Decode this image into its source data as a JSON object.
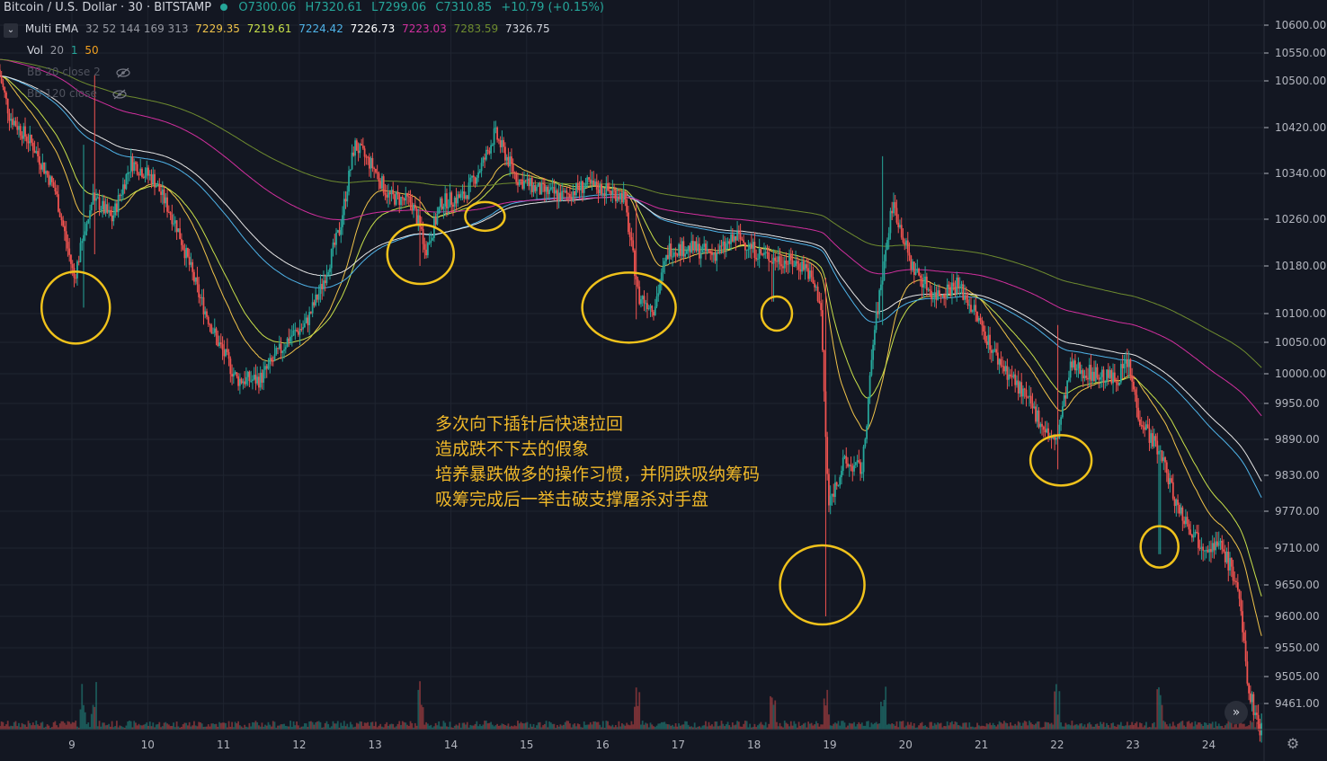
{
  "header": {
    "symbol": "Bitcoin / U.S. Dollar · 30 · BITSTAMP",
    "open": "O7300.06",
    "high": "H7320.61",
    "low": "L7299.06",
    "close": "C7310.85",
    "change": "+10.79 (+0.15%)"
  },
  "indicators": {
    "ema": {
      "name": "Multi EMA",
      "params": "32 52 144 169 313",
      "values": [
        "7229.35",
        "7219.61",
        "7224.42",
        "7226.73",
        "7223.03",
        "7283.59",
        "7326.75"
      ],
      "colors": [
        "#f0c34a",
        "#c8e04a",
        "#4fb3e8",
        "#ffffff",
        "#d12f9e",
        "#6e8b2f",
        "#d1d4dc"
      ]
    },
    "vol": {
      "name": "Vol",
      "p1": "20",
      "p2": "1",
      "p3": "50"
    },
    "bb1": {
      "name": "BB 20 close 2"
    },
    "bb2": {
      "name": "BB 120 close"
    }
  },
  "annotation": {
    "lines": [
      "多次向下插针后快速拉回",
      "造成跌不下去的假象",
      "培养暴跌做多的操作习惯，并阴跌吸纳筹码",
      "吸筹完成后一举击破支撑屠杀对手盘"
    ],
    "color": "#f0b829"
  },
  "colors": {
    "background": "#131722",
    "up": "#26a69a",
    "down": "#ef5350",
    "grid": "#1f2430",
    "circle": "#f0c21b"
  },
  "icons": {
    "scroll": "double-chevron-right-icon",
    "settings": "gear-icon",
    "collapse": "chevron-down-icon",
    "hidden": "eye-off-icon"
  },
  "chart_data": {
    "type": "candlestick",
    "y_ticks": [
      10600,
      10550,
      10500,
      10420,
      10340,
      10260,
      10180,
      10100,
      10050,
      10000,
      9950,
      9890,
      9830,
      9770,
      9710,
      9650,
      9600,
      9550,
      9505,
      9461
    ],
    "y_tick_labels": [
      "10600.00",
      "10550.00",
      "10500.00",
      "10420.00",
      "10340.00",
      "10260.00",
      "10180.00",
      "10100.00",
      "10050.00",
      "10000.00",
      "9950.00",
      "9890.00",
      "9830.00",
      "9770.00",
      "9710.00",
      "9650.00",
      "9600.00",
      "9550.00",
      "9505.00",
      "9461.00"
    ],
    "x_ticks": [
      "9",
      "10",
      "11",
      "12",
      "13",
      "14",
      "15",
      "16",
      "17",
      "18",
      "19",
      "20",
      "21",
      "22",
      "23",
      "24"
    ],
    "price_path": [
      [
        8.05,
        10520
      ],
      [
        8.2,
        10440
      ],
      [
        8.5,
        10390
      ],
      [
        8.8,
        10310
      ],
      [
        9.05,
        10160
      ],
      [
        9.3,
        10300
      ],
      [
        9.55,
        10260
      ],
      [
        9.8,
        10360
      ],
      [
        10.1,
        10330
      ],
      [
        10.4,
        10250
      ],
      [
        10.7,
        10130
      ],
      [
        10.95,
        10050
      ],
      [
        11.2,
        9990
      ],
      [
        11.5,
        9990
      ],
      [
        11.9,
        10060
      ],
      [
        12.1,
        10080
      ],
      [
        12.3,
        10140
      ],
      [
        12.55,
        10240
      ],
      [
        12.75,
        10390
      ],
      [
        13.0,
        10350
      ],
      [
        13.2,
        10300
      ],
      [
        13.5,
        10290
      ],
      [
        13.7,
        10210
      ],
      [
        13.9,
        10290
      ],
      [
        14.2,
        10300
      ],
      [
        14.45,
        10360
      ],
      [
        14.6,
        10410
      ],
      [
        14.9,
        10330
      ],
      [
        15.2,
        10310
      ],
      [
        15.5,
        10300
      ],
      [
        15.8,
        10320
      ],
      [
        16.1,
        10310
      ],
      [
        16.3,
        10300
      ],
      [
        16.5,
        10130
      ],
      [
        16.7,
        10110
      ],
      [
        16.9,
        10210
      ],
      [
        17.2,
        10210
      ],
      [
        17.5,
        10200
      ],
      [
        17.8,
        10230
      ],
      [
        18.1,
        10200
      ],
      [
        18.4,
        10190
      ],
      [
        18.7,
        10180
      ],
      [
        18.9,
        10120
      ],
      [
        19.0,
        9780
      ],
      [
        19.2,
        9850
      ],
      [
        19.45,
        9840
      ],
      [
        19.6,
        10060
      ],
      [
        19.85,
        10290
      ],
      [
        20.1,
        10180
      ],
      [
        20.4,
        10130
      ],
      [
        20.7,
        10150
      ],
      [
        20.9,
        10110
      ],
      [
        21.2,
        10030
      ],
      [
        21.5,
        9980
      ],
      [
        21.8,
        9920
      ],
      [
        22.0,
        9880
      ],
      [
        22.2,
        10010
      ],
      [
        22.5,
        10000
      ],
      [
        22.8,
        9990
      ],
      [
        22.95,
        10020
      ],
      [
        23.1,
        9930
      ],
      [
        23.4,
        9860
      ],
      [
        23.6,
        9780
      ],
      [
        23.9,
        9720
      ],
      [
        24.2,
        9710
      ],
      [
        24.4,
        9650
      ],
      [
        24.55,
        9480
      ],
      [
        24.7,
        9420
      ]
    ],
    "spikes": [
      {
        "x": 9.15,
        "low": 10110,
        "high": 10390
      },
      {
        "x": 9.3,
        "low": 10200,
        "high": 10510
      },
      {
        "x": 13.6,
        "low": 10180,
        "high": 10300
      },
      {
        "x": 16.45,
        "low": 10090,
        "high": 10290
      },
      {
        "x": 18.25,
        "low": 10120,
        "high": 10200
      },
      {
        "x": 18.95,
        "low": 9600,
        "high": 10160
      },
      {
        "x": 19.7,
        "low": 10080,
        "high": 10370
      },
      {
        "x": 22.0,
        "low": 9840,
        "high": 10080
      },
      {
        "x": 23.35,
        "low": 9700,
        "high": 9800
      }
    ],
    "circles": [
      {
        "x": 9.05,
        "y": 10110
      },
      {
        "x": 13.6,
        "y": 10200
      },
      {
        "x": 14.45,
        "y": 10265
      },
      {
        "x": 16.35,
        "y": 10110
      },
      {
        "x": 18.3,
        "y": 10100
      },
      {
        "x": 18.9,
        "y": 9650
      },
      {
        "x": 22.05,
        "y": 9855
      },
      {
        "x": 23.35,
        "y": 9712
      }
    ]
  }
}
